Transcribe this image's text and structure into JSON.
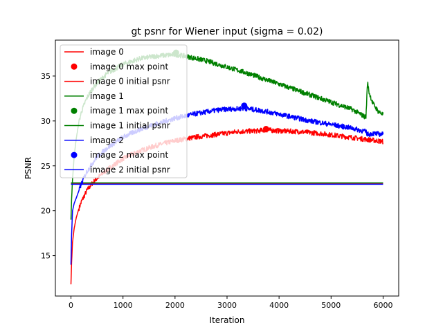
{
  "chart_data": {
    "type": "line",
    "title": "gt psnr for Wiener input (sigma = 0.02)",
    "xlabel": "Iteration",
    "ylabel": "PSNR",
    "xlim": [
      -300,
      6300
    ],
    "ylim": [
      10.5,
      39.0
    ],
    "xticks": [
      0,
      1000,
      2000,
      3000,
      4000,
      5000,
      6000
    ],
    "yticks": [
      15,
      20,
      25,
      30,
      35
    ],
    "grid": false,
    "legend_position": "top-left",
    "series": [
      {
        "name": "image 0",
        "color": "#ff0000",
        "x": [
          0,
          10,
          30,
          60,
          100,
          150,
          200,
          300,
          400,
          500,
          700,
          1000,
          1300,
          1600,
          2000,
          2400,
          2800,
          3200,
          3600,
          3750,
          4000,
          4400,
          4800,
          5200,
          5600,
          6000
        ],
        "y": [
          11.8,
          14.0,
          16.5,
          18.0,
          19.2,
          20.2,
          21.0,
          22.2,
          23.0,
          23.6,
          24.6,
          25.8,
          26.6,
          27.2,
          27.8,
          28.2,
          28.5,
          28.8,
          28.9,
          29.0,
          28.9,
          28.8,
          28.6,
          28.3,
          28.0,
          27.7
        ]
      },
      {
        "name": "image 0 max point",
        "color": "#ff0000",
        "x": [
          3750
        ],
        "y": [
          29.1
        ]
      },
      {
        "name": "image 0 initial psnr",
        "color": "#ff0000",
        "x": [
          0,
          6000
        ],
        "y": [
          23.05,
          23.05
        ]
      },
      {
        "name": "image 1",
        "color": "#008000",
        "x": [
          0,
          10,
          30,
          60,
          100,
          150,
          200,
          300,
          400,
          500,
          700,
          1000,
          1300,
          1600,
          1800,
          2000,
          2200,
          2600,
          3000,
          3400,
          3800,
          4200,
          4600,
          5000,
          5400,
          5670,
          5700,
          5730,
          5800,
          5900,
          6000
        ],
        "y": [
          19.0,
          21.0,
          23.5,
          26.0,
          28.0,
          29.8,
          31.0,
          32.5,
          33.5,
          34.2,
          35.3,
          36.3,
          36.9,
          37.2,
          37.3,
          37.4,
          37.2,
          36.7,
          36.0,
          35.3,
          34.5,
          33.7,
          32.9,
          32.1,
          31.3,
          30.4,
          34.3,
          33.2,
          32.0,
          31.1,
          30.7
        ]
      },
      {
        "name": "image 1 max point",
        "color": "#008000",
        "x": [
          2020
        ],
        "y": [
          37.6
        ]
      },
      {
        "name": "image 1 initial psnr",
        "color": "#008000",
        "x": [
          0,
          6000
        ],
        "y": [
          23.1,
          23.1
        ]
      },
      {
        "name": "image 2",
        "color": "#0000ff",
        "x": [
          0,
          10,
          30,
          60,
          100,
          150,
          200,
          300,
          400,
          500,
          700,
          1000,
          1300,
          1600,
          2000,
          2400,
          2800,
          3000,
          3330,
          3600,
          3800,
          4200,
          4600,
          5000,
          5400,
          5670,
          5700,
          5800,
          6000
        ],
        "y": [
          14.0,
          17.0,
          20.0,
          20.8,
          21.4,
          22.2,
          23.0,
          24.3,
          25.2,
          26.0,
          27.0,
          28.2,
          29.0,
          29.6,
          30.3,
          30.8,
          31.2,
          31.3,
          31.4,
          31.2,
          31.0,
          30.5,
          30.0,
          29.6,
          29.2,
          28.8,
          28.5,
          28.6,
          28.5
        ]
      },
      {
        "name": "image 2 max point",
        "color": "#0000ff",
        "x": [
          3330
        ],
        "y": [
          31.7
        ]
      },
      {
        "name": "image 2 initial psnr",
        "color": "#0000ff",
        "x": [
          0,
          6000
        ],
        "y": [
          22.95,
          22.95
        ]
      }
    ]
  }
}
